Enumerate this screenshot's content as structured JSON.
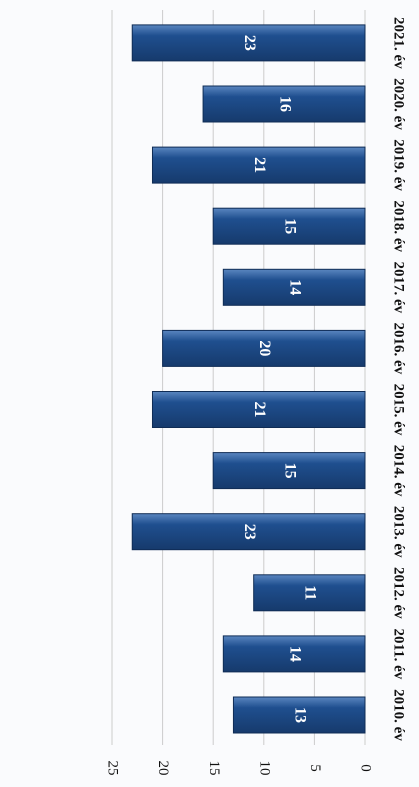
{
  "chart_data": {
    "type": "bar",
    "orientation": "horizontal",
    "categories": [
      "2010. év",
      "2011. év",
      "2012. év",
      "2013. év",
      "2014. év",
      "2015. év",
      "2016. év",
      "2017. év",
      "2018. év",
      "2019. év",
      "2020. év",
      "2021. év"
    ],
    "values": [
      13,
      14,
      11,
      23,
      15,
      21,
      20,
      14,
      15,
      21,
      16,
      23
    ],
    "color": "#1f4f8f",
    "ylim": [
      0,
      25
    ],
    "yticks": [
      0,
      5,
      10,
      15,
      20,
      25
    ],
    "grid": true
  }
}
